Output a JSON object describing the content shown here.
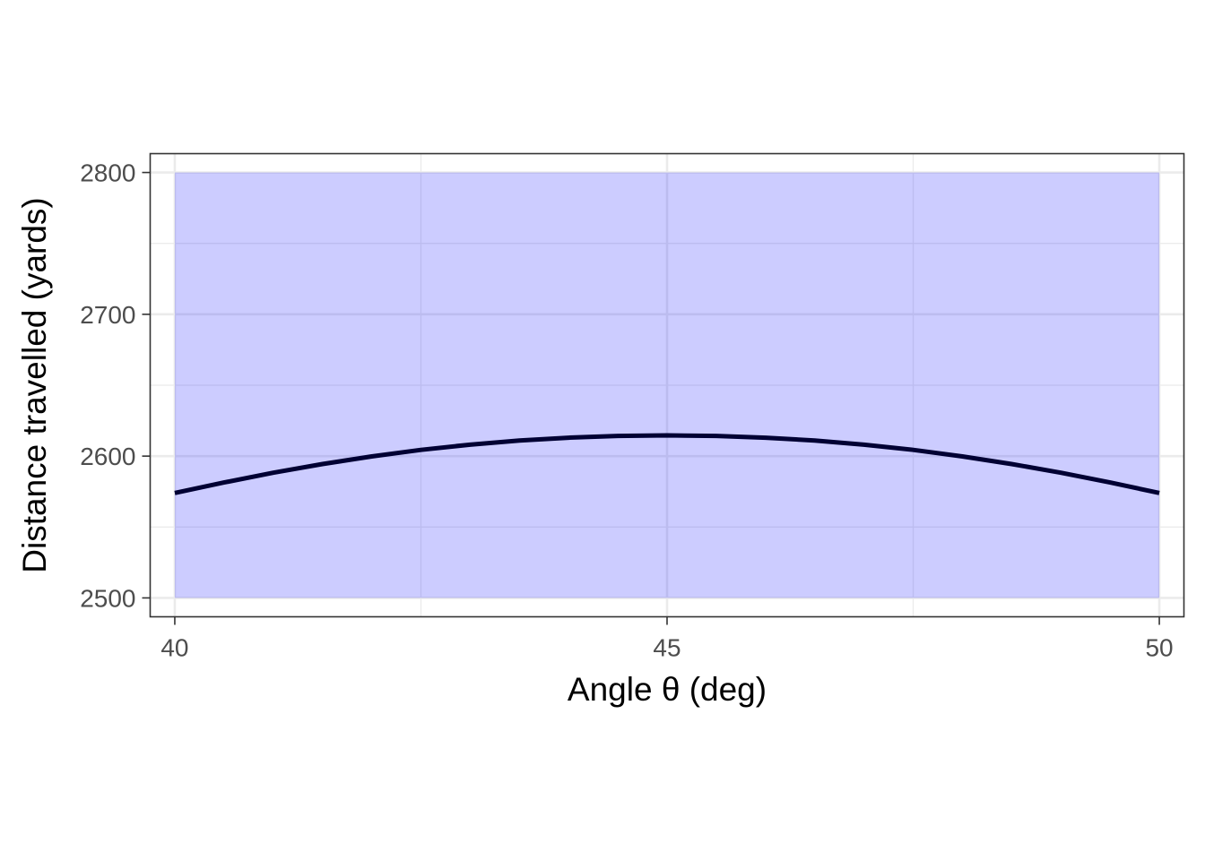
{
  "chart_data": {
    "type": "line",
    "title": "",
    "xlabel": "Angle θ (deg)",
    "ylabel": "Distance travelled (yards)",
    "xlim": [
      39.75,
      50.25
    ],
    "ylim": [
      2486.7,
      2813.3
    ],
    "x_ticks": [
      40,
      45,
      50
    ],
    "x_tick_labels": [
      "40",
      "45",
      "50"
    ],
    "y_ticks": [
      2500,
      2600,
      2700,
      2800
    ],
    "y_tick_labels": [
      "2500",
      "2600",
      "2700",
      "2800"
    ],
    "grid": true,
    "legend": "none",
    "band": {
      "x_range": [
        40,
        50
      ],
      "y_range": [
        2500,
        2800
      ],
      "color": "#0000ff",
      "opacity": 0.2
    },
    "series": [
      {
        "color": "#000033",
        "x": [
          40,
          40.5,
          41,
          41.5,
          42,
          42.5,
          43,
          43.5,
          44,
          44.5,
          45,
          45.5,
          46,
          46.5,
          47,
          47.5,
          48,
          48.5,
          49,
          49.5,
          50
        ],
        "y": [
          2574.0,
          2581.4,
          2588.3,
          2594.4,
          2599.8,
          2604.4,
          2608.1,
          2611.0,
          2613.0,
          2614.2,
          2614.6,
          2614.2,
          2613.0,
          2611.0,
          2608.1,
          2604.4,
          2599.8,
          2594.4,
          2588.3,
          2581.4,
          2574.0
        ]
      }
    ]
  }
}
